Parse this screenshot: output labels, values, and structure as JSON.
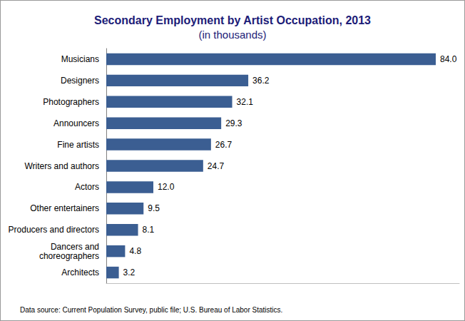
{
  "chart_data": {
    "type": "bar",
    "orientation": "horizontal",
    "title": "Secondary Employment by Artist Occupation, 2013",
    "subtitle": "(in thousands)",
    "source": "Data source: Current Population Survey, public file; U.S. Bureau of Labor Statistics.",
    "categories": [
      "Musicians",
      "Designers",
      "Photographers",
      "Announcers",
      "Fine artists",
      "Writers and authors",
      "Actors",
      "Other entertainers",
      "Producers and directors",
      "Dancers and\nchoreographers",
      "Architects"
    ],
    "values": [
      84.0,
      36.2,
      32.1,
      29.3,
      26.7,
      24.7,
      12.0,
      9.5,
      8.1,
      4.8,
      3.2
    ],
    "value_labels": [
      "84.0",
      "36.2",
      "32.1",
      "29.3",
      "26.7",
      "24.7",
      "12.0",
      "9.5",
      "8.1",
      "4.8",
      "3.2"
    ],
    "data_labels": true,
    "color": "#3b5e92",
    "xlim": [
      0,
      90
    ],
    "grid": false,
    "tick_labels": "y"
  }
}
